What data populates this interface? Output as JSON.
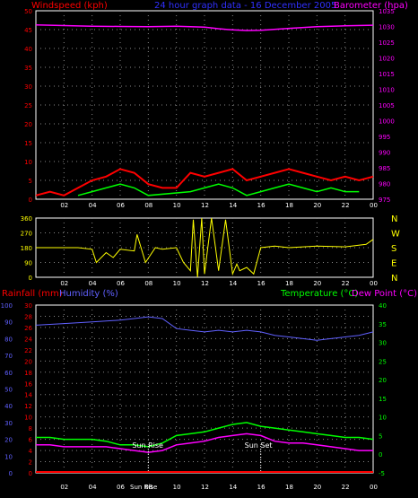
{
  "header": {
    "wind_label": "Windspeed (kph)",
    "title": "24 hour graph data - 16 December 2005",
    "baro_label": "Barometer (hpa)"
  },
  "bottom_header": {
    "rain_label": "Rainfall (mm)",
    "hum_label": "Humidity (%)",
    "temp_label": "Temperature (°C)",
    "dew_label": "Dew Point (°C)"
  },
  "annotations": {
    "sunrise": "Sun Rise",
    "sunset": "Sun Set",
    "sunrise_time_label": "Sun Rise"
  },
  "colors": {
    "wind": "#ff0000",
    "gust_white": "#ffffff",
    "gust_green": "#00ff00",
    "baro": "#ff00ff",
    "winddir": "#ffff00",
    "humidity": "#6060ff",
    "temp": "#00ff00",
    "dew": "#ff00ff",
    "rain": "#ff0000"
  },
  "chart_data": [
    {
      "type": "line",
      "name": "wind-baro",
      "title": "24 hour graph data - 16 December 2005",
      "x_ticks": [
        "02",
        "04",
        "06",
        "08",
        "10",
        "12",
        "14",
        "16",
        "18",
        "20",
        "22",
        "00"
      ],
      "y_left": {
        "label": "Windspeed (kph)",
        "ylim": [
          0,
          50
        ],
        "ticks": [
          "0",
          "5",
          "10",
          "15",
          "20",
          "25",
          "30",
          "35",
          "40",
          "45",
          "50"
        ]
      },
      "y_right": {
        "label": "Barometer (hpa)",
        "ylim": [
          975,
          1035
        ],
        "ticks": [
          "975",
          "980",
          "985",
          "990",
          "995",
          "1000",
          "1005",
          "1010",
          "1015",
          "1020",
          "1025",
          "1030",
          "1035"
        ]
      },
      "series": [
        {
          "name": "Barometer (hpa)",
          "x": [
            0,
            2,
            4,
            6,
            8,
            10,
            12,
            13,
            14,
            15,
            16,
            18,
            20,
            22,
            24
          ],
          "values": [
            1030.5,
            1030.3,
            1030.1,
            1030.0,
            1029.9,
            1030.1,
            1029.8,
            1029.3,
            1028.9,
            1028.7,
            1028.8,
            1029.4,
            1029.9,
            1030.2,
            1030.4
          ]
        },
        {
          "name": "Windspeed (kph)",
          "x": [
            0,
            1,
            2,
            3,
            4,
            5,
            6,
            7,
            8,
            9,
            10,
            11,
            12,
            13,
            14,
            15,
            16,
            17,
            18,
            19,
            20,
            21,
            22,
            23,
            24
          ],
          "values": [
            1,
            2,
            1,
            3,
            5,
            6,
            8,
            7,
            4,
            3,
            3,
            7,
            6,
            7,
            8,
            5,
            6,
            7,
            8,
            7,
            6,
            5,
            6,
            5,
            6
          ]
        },
        {
          "name": "Gust",
          "x": [
            3,
            4,
            5,
            6,
            7,
            8,
            11,
            12,
            13,
            14,
            15,
            16,
            17,
            18,
            19,
            20,
            21,
            22,
            23
          ],
          "values": [
            1,
            2,
            3,
            4,
            3,
            1,
            2,
            3,
            4,
            3,
            1,
            2,
            3,
            4,
            3,
            2,
            3,
            2,
            2
          ]
        }
      ]
    },
    {
      "type": "line",
      "name": "wind-direction",
      "x_ticks": [
        "02",
        "04",
        "06",
        "08",
        "10",
        "12",
        "14",
        "16",
        "18",
        "20",
        "22",
        "00"
      ],
      "y_left": {
        "ylim": [
          0,
          360
        ],
        "ticks": [
          "0",
          "90",
          "180",
          "270",
          "360"
        ]
      },
      "y_right_labels": [
        "N",
        "W",
        "S",
        "E",
        "N"
      ],
      "series": [
        {
          "name": "Wind Direction",
          "x": [
            0,
            3,
            4,
            4.3,
            5,
            5.5,
            6,
            7,
            7.2,
            7.8,
            8.5,
            9,
            10,
            10.5,
            11,
            11.2,
            11.5,
            11.8,
            12,
            12.5,
            13,
            13.5,
            14,
            14.3,
            14.5,
            15,
            15.5,
            16,
            17,
            18,
            20,
            22,
            23.5,
            24
          ],
          "values": [
            180,
            180,
            170,
            90,
            150,
            120,
            170,
            160,
            260,
            90,
            180,
            170,
            180,
            90,
            40,
            350,
            0,
            360,
            20,
            360,
            40,
            350,
            20,
            80,
            40,
            60,
            20,
            180,
            190,
            180,
            190,
            185,
            200,
            230
          ]
        }
      ]
    },
    {
      "type": "line",
      "name": "rain-humidity-temp",
      "x_ticks": [
        "02",
        "04",
        "06",
        "08",
        "10",
        "12",
        "14",
        "16",
        "18",
        "20",
        "22",
        "00"
      ],
      "y_left_rain": {
        "label": "Rainfall (mm)",
        "ylim": [
          0,
          30
        ],
        "ticks": [
          "0",
          "2",
          "4",
          "6",
          "8",
          "10",
          "12",
          "14",
          "16",
          "18",
          "20",
          "22",
          "24",
          "26",
          "28",
          "30"
        ]
      },
      "y_left_hum": {
        "label": "Humidity (%)",
        "ylim": [
          0,
          100
        ],
        "ticks": [
          "0",
          "10",
          "20",
          "30",
          "40",
          "50",
          "60",
          "70",
          "80",
          "90",
          "100"
        ]
      },
      "y_right": {
        "label": "Temperature (°C)",
        "ylim": [
          -5,
          40
        ],
        "ticks": [
          "-5",
          "0",
          "5",
          "10",
          "15",
          "20",
          "25",
          "30",
          "35",
          "40"
        ]
      },
      "series": [
        {
          "name": "Humidity (%)",
          "x": [
            0,
            2,
            4,
            6,
            7,
            8,
            9,
            10,
            11,
            12,
            13,
            14,
            15,
            16,
            17,
            18,
            19,
            20,
            21,
            22,
            23,
            24
          ],
          "values": [
            88,
            89,
            90,
            91,
            92,
            93,
            92,
            86,
            85,
            84,
            85,
            84,
            85,
            84,
            82,
            81,
            80,
            79,
            80,
            81,
            82,
            84
          ]
        },
        {
          "name": "Temperature (°C)",
          "x": [
            0,
            1,
            2,
            3,
            4,
            5,
            6,
            7,
            8,
            9,
            10,
            11,
            12,
            13,
            14,
            15,
            16,
            17,
            18,
            19,
            20,
            21,
            22,
            23,
            24
          ],
          "values": [
            4.5,
            4.5,
            4.0,
            4.0,
            4.0,
            3.5,
            2.5,
            2.5,
            2.0,
            3.0,
            5.0,
            5.5,
            6.0,
            7.0,
            8.0,
            8.5,
            7.5,
            7.0,
            6.5,
            6.0,
            5.5,
            5.0,
            4.5,
            4.5,
            4.0
          ]
        },
        {
          "name": "Dew Point (°C)",
          "x": [
            0,
            1,
            2,
            3,
            4,
            5,
            6,
            7,
            8,
            9,
            10,
            11,
            12,
            13,
            14,
            15,
            16,
            17,
            18,
            19,
            20,
            21,
            22,
            23,
            24
          ],
          "values": [
            2.5,
            2.5,
            2.0,
            2.0,
            2.0,
            2.0,
            1.5,
            1.0,
            0.5,
            1.0,
            2.5,
            3.0,
            3.5,
            4.5,
            5.0,
            5.5,
            5.0,
            3.5,
            3.0,
            3.0,
            2.5,
            2.0,
            1.5,
            1.0,
            1.0
          ]
        },
        {
          "name": "Rainfall (mm)",
          "x": [
            0,
            24
          ],
          "values": [
            0,
            0
          ]
        }
      ],
      "markers": [
        {
          "label": "Sun Rise",
          "x": 8.0
        },
        {
          "label": "Sun Set",
          "x": 16.0
        }
      ]
    }
  ]
}
